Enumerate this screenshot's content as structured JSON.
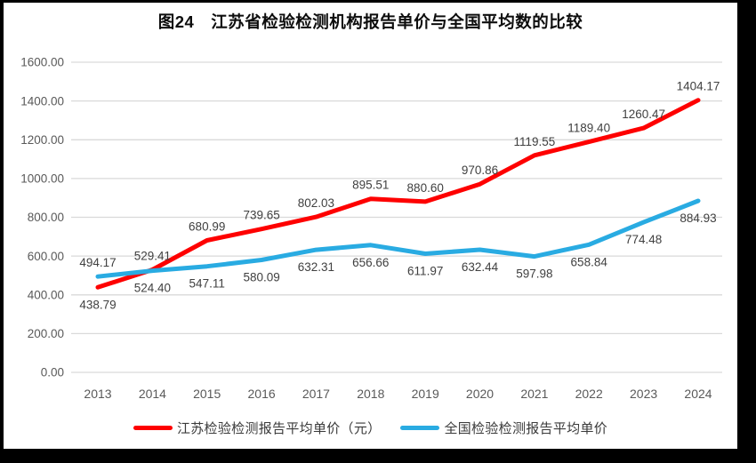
{
  "page": {
    "title": "图24　江苏省检验检测机构报告单价与全国平均数的比较"
  },
  "chart_data": {
    "type": "line",
    "title": "图24　江苏省检验检测机构报告单价与全国平均数的比较",
    "categories": [
      "2013",
      "2014",
      "2015",
      "2016",
      "2017",
      "2018",
      "2019",
      "2020",
      "2021",
      "2022",
      "2023",
      "2024"
    ],
    "series": [
      {
        "name": "江苏检验检测报告平均单价（元）",
        "color": "#fe0000",
        "values": [
          438.79,
          529.41,
          680.99,
          739.65,
          802.03,
          895.51,
          880.6,
          970.86,
          1119.55,
          1189.4,
          1260.47,
          1404.17
        ],
        "labels": [
          "438.79",
          "529.41",
          "680.99",
          "739.65",
          "802.03",
          "895.51",
          "880.60",
          "970.86",
          "1119.55",
          "1189.40",
          "1260.47",
          "1404.17"
        ],
        "label_position": "above",
        "first_label_position": "below"
      },
      {
        "name": "全国检验检测报告平均单价",
        "color": "#29abe2",
        "values": [
          494.17,
          524.4,
          547.11,
          580.09,
          632.31,
          656.66,
          611.97,
          632.44,
          597.98,
          658.84,
          774.48,
          884.93
        ],
        "labels": [
          "494.17",
          "524.40",
          "547.11",
          "580.09",
          "632.31",
          "656.66",
          "611.97",
          "632.44",
          "597.98",
          "658.84",
          "774.48",
          "884.93"
        ],
        "label_position": "below",
        "first_label_position": "above"
      }
    ],
    "y_ticks": {
      "values": [
        0,
        200,
        400,
        600,
        800,
        1000,
        1200,
        1400,
        1600
      ],
      "labels": [
        "0.00",
        "200.00",
        "400.00",
        "600.00",
        "800.00",
        "1000.00",
        "1200.00",
        "1400.00",
        "1600.00"
      ]
    },
    "ylim": [
      0,
      1600
    ],
    "xlabel": "",
    "ylabel": "",
    "grid": "horizontal",
    "legend_position": "bottom",
    "colors": {
      "axis_label": "#595959",
      "data_label": "#404040",
      "gridline": "#d9d9d9"
    }
  }
}
